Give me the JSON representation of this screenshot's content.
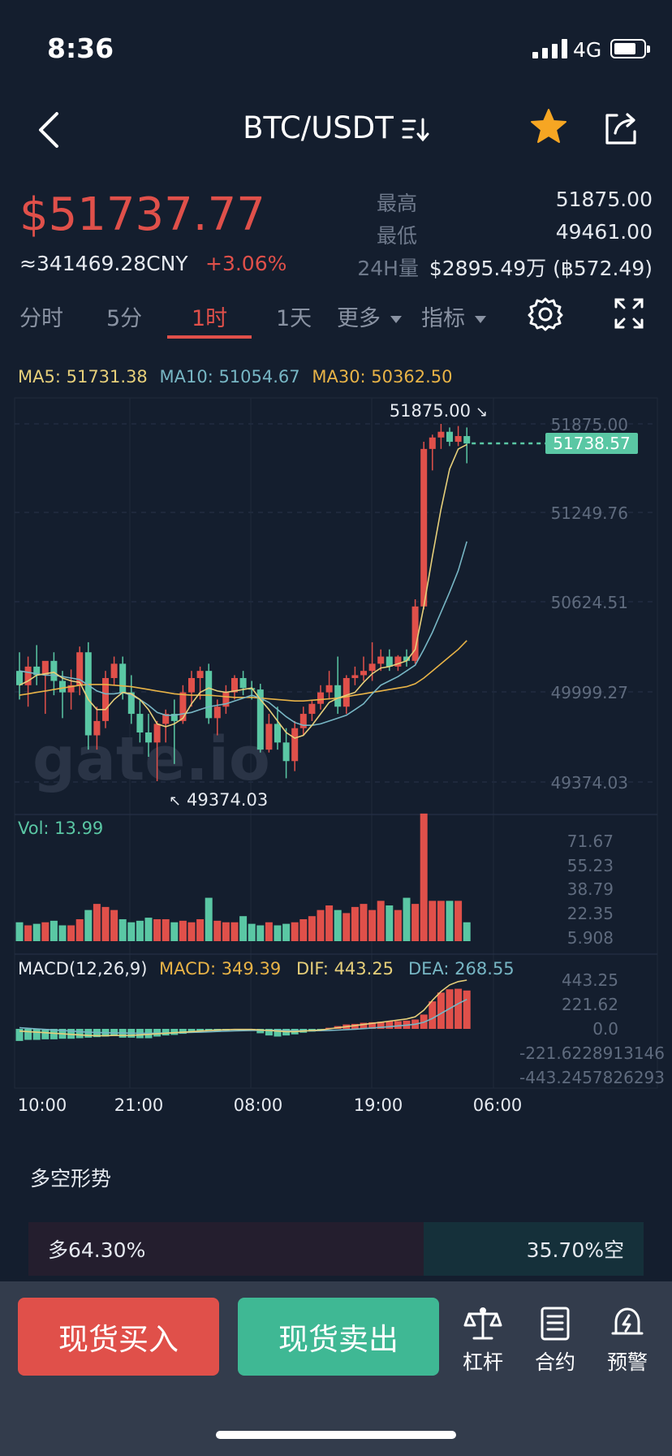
{
  "status_bar": {
    "time": "8:36",
    "network": "4G",
    "battery_level": 0.75
  },
  "header": {
    "pair": "BTC/USDT"
  },
  "ticker": {
    "last_price": "$51737.77",
    "cny_price": "≈341469.28CNY",
    "change_pct": "+3.06%",
    "high_label": "最高",
    "high_value": "51875.00",
    "low_label": "最低",
    "low_value": "49461.00",
    "volume_label": "24H量",
    "volume_value": "$2895.49万 (฿572.49)"
  },
  "interval_tabs": [
    {
      "label": "分时",
      "active": false
    },
    {
      "label": "5分",
      "active": false
    },
    {
      "label": "1时",
      "active": true
    },
    {
      "label": "1天",
      "active": false
    },
    {
      "label": "更多",
      "active": false
    },
    {
      "label": "指标",
      "active": false
    }
  ],
  "indicators": {
    "ma5": "MA5: 51731.38",
    "ma10": "MA10: 51054.67",
    "ma30": "MA30: 50362.50",
    "ma5_color": "#e6cf7a",
    "ma10_color": "#77b6c4",
    "ma30_color": "#e8b347"
  },
  "chart_data": {
    "type": "candlestick",
    "price_axis_ticks": [
      "51875.00",
      "51249.76",
      "50624.51",
      "49999.27",
      "49374.03"
    ],
    "price_range": [
      49374.03,
      51875.0
    ],
    "current_price_tag": "51738.57",
    "max_marker": "51875.00",
    "min_marker": "49374.03",
    "watermark": "gate.io",
    "time_ticks": [
      "10:00",
      "21:00",
      "08:00",
      "19:00",
      "06:00"
    ],
    "candles": [
      {
        "o": 50150,
        "h": 50280,
        "l": 49950,
        "c": 50050
      },
      {
        "o": 50050,
        "h": 50250,
        "l": 49900,
        "c": 50180
      },
      {
        "o": 50180,
        "h": 50330,
        "l": 50050,
        "c": 50120
      },
      {
        "o": 50120,
        "h": 50200,
        "l": 49850,
        "c": 50220
      },
      {
        "o": 50220,
        "h": 50280,
        "l": 49980,
        "c": 50080
      },
      {
        "o": 50080,
        "h": 50150,
        "l": 49820,
        "c": 50000
      },
      {
        "o": 50000,
        "h": 50160,
        "l": 49880,
        "c": 50050
      },
      {
        "o": 50050,
        "h": 50320,
        "l": 49980,
        "c": 50280
      },
      {
        "o": 50280,
        "h": 50350,
        "l": 49600,
        "c": 49700
      },
      {
        "o": 49700,
        "h": 49900,
        "l": 49600,
        "c": 49800
      },
      {
        "o": 49800,
        "h": 50150,
        "l": 49750,
        "c": 50100
      },
      {
        "o": 50100,
        "h": 50250,
        "l": 50050,
        "c": 50200
      },
      {
        "o": 50200,
        "h": 50250,
        "l": 49950,
        "c": 50000
      },
      {
        "o": 50000,
        "h": 50120,
        "l": 49780,
        "c": 49850
      },
      {
        "o": 49850,
        "h": 49950,
        "l": 49650,
        "c": 49720
      },
      {
        "o": 49720,
        "h": 49850,
        "l": 49550,
        "c": 49650
      },
      {
        "o": 49650,
        "h": 49800,
        "l": 49380,
        "c": 49780
      },
      {
        "o": 49780,
        "h": 49880,
        "l": 49650,
        "c": 49850
      },
      {
        "o": 49850,
        "h": 49950,
        "l": 49500,
        "c": 49800
      },
      {
        "o": 49800,
        "h": 50050,
        "l": 49780,
        "c": 50000
      },
      {
        "o": 50000,
        "h": 50150,
        "l": 49900,
        "c": 50100
      },
      {
        "o": 50100,
        "h": 50180,
        "l": 49950,
        "c": 50150
      },
      {
        "o": 50150,
        "h": 50200,
        "l": 49780,
        "c": 49820
      },
      {
        "o": 49820,
        "h": 49950,
        "l": 49700,
        "c": 49900
      },
      {
        "o": 49900,
        "h": 50050,
        "l": 49850,
        "c": 50000
      },
      {
        "o": 50000,
        "h": 50120,
        "l": 49950,
        "c": 50100
      },
      {
        "o": 50100,
        "h": 50150,
        "l": 49980,
        "c": 50030
      },
      {
        "o": 50030,
        "h": 50080,
        "l": 49950,
        "c": 50020
      },
      {
        "o": 50020,
        "h": 50060,
        "l": 49580,
        "c": 49600
      },
      {
        "o": 49600,
        "h": 49850,
        "l": 49580,
        "c": 49780
      },
      {
        "o": 49780,
        "h": 49900,
        "l": 49600,
        "c": 49650
      },
      {
        "o": 49650,
        "h": 49750,
        "l": 49400,
        "c": 49520
      },
      {
        "o": 49520,
        "h": 49800,
        "l": 49450,
        "c": 49750
      },
      {
        "o": 49750,
        "h": 49900,
        "l": 49700,
        "c": 49850
      },
      {
        "o": 49850,
        "h": 49950,
        "l": 49800,
        "c": 49920
      },
      {
        "o": 49920,
        "h": 50050,
        "l": 49880,
        "c": 50000
      },
      {
        "o": 50000,
        "h": 50150,
        "l": 49950,
        "c": 50050
      },
      {
        "o": 50050,
        "h": 50250,
        "l": 49850,
        "c": 49900
      },
      {
        "o": 49900,
        "h": 50120,
        "l": 49850,
        "c": 50100
      },
      {
        "o": 50100,
        "h": 50180,
        "l": 50050,
        "c": 50120
      },
      {
        "o": 50120,
        "h": 50250,
        "l": 50080,
        "c": 50150
      },
      {
        "o": 50150,
        "h": 50350,
        "l": 50080,
        "c": 50200
      },
      {
        "o": 50200,
        "h": 50300,
        "l": 50150,
        "c": 50250
      },
      {
        "o": 50250,
        "h": 50300,
        "l": 50150,
        "c": 50180
      },
      {
        "o": 50180,
        "h": 50260,
        "l": 50150,
        "c": 50250
      },
      {
        "o": 50250,
        "h": 50300,
        "l": 50180,
        "c": 50220
      },
      {
        "o": 50220,
        "h": 50650,
        "l": 50200,
        "c": 50600
      },
      {
        "o": 50600,
        "h": 51750,
        "l": 50580,
        "c": 51700
      },
      {
        "o": 51700,
        "h": 51800,
        "l": 51550,
        "c": 51780
      },
      {
        "o": 51780,
        "h": 51875,
        "l": 51700,
        "c": 51820
      },
      {
        "o": 51820,
        "h": 51850,
        "l": 51720,
        "c": 51750
      },
      {
        "o": 51750,
        "h": 51860,
        "l": 51720,
        "c": 51790
      },
      {
        "o": 51790,
        "h": 51850,
        "l": 51600,
        "c": 51738
      }
    ],
    "ma5_series": [
      50050,
      50080,
      50120,
      50130,
      50140,
      50100,
      50080,
      50070,
      49950,
      49880,
      49880,
      49950,
      50000,
      49990,
      49950,
      49880,
      49780,
      49760,
      49780,
      49820,
      49920,
      50000,
      50030,
      50010,
      50000,
      50010,
      50020,
      50030,
      49950,
      49880,
      49800,
      49720,
      49680,
      49700,
      49770,
      49850,
      49930,
      49960,
      49980,
      50000,
      50070,
      50130,
      50170,
      50180,
      50200,
      50220,
      50300,
      50600,
      50950,
      51280,
      51560,
      51700,
      51731
    ],
    "ma10_series": [
      50150,
      50140,
      50130,
      50120,
      50120,
      50110,
      50100,
      50090,
      50050,
      50010,
      49990,
      49990,
      50000,
      49980,
      49950,
      49910,
      49860,
      49840,
      49840,
      49850,
      49860,
      49880,
      49900,
      49910,
      49920,
      49940,
      49960,
      49980,
      49960,
      49930,
      49880,
      49830,
      49790,
      49770,
      49770,
      49780,
      49800,
      49820,
      49840,
      49880,
      49920,
      49990,
      50050,
      50080,
      50110,
      50150,
      50190,
      50300,
      50420,
      50560,
      50700,
      50850,
      51054
    ],
    "ma30_series": [
      49980,
      49990,
      50000,
      50010,
      50020,
      50030,
      50040,
      50050,
      50055,
      50055,
      50055,
      50050,
      50045,
      50040,
      50030,
      50020,
      50010,
      50000,
      49990,
      49985,
      49980,
      49980,
      49980,
      49975,
      49970,
      49965,
      49965,
      49965,
      49960,
      49955,
      49950,
      49945,
      49940,
      49940,
      49945,
      49950,
      49955,
      49960,
      49970,
      49980,
      49990,
      50000,
      50010,
      50020,
      50030,
      50040,
      50060,
      50100,
      50150,
      50200,
      50250,
      50300,
      50362
    ]
  },
  "volume": {
    "label": "Vol: 13.99",
    "ticks": [
      "71.67",
      "55.23",
      "38.79",
      "22.35",
      "5.908"
    ],
    "range": [
      5.908,
      71.67
    ],
    "values": [
      14,
      12,
      13,
      14,
      15,
      12,
      12,
      16,
      22,
      26,
      24,
      22,
      16,
      14,
      15,
      17,
      16,
      16,
      14,
      15,
      14,
      16,
      30,
      15,
      14,
      14,
      18,
      13,
      12,
      14,
      12,
      13,
      14,
      16,
      18,
      22,
      25,
      22,
      20,
      24,
      26,
      22,
      28,
      25,
      22,
      30,
      26,
      85,
      28,
      28,
      28,
      28,
      14
    ]
  },
  "macd": {
    "label": "MACD(12,26,9)",
    "macd_value": "MACD: 349.39",
    "dif_value": "DIF: 443.25",
    "dea_value": "DEA: 268.55",
    "ticks": [
      "443.25",
      "221.62",
      "0.0",
      "-221.6228913146",
      "-443.2457826293"
    ],
    "range": [
      -443.25,
      443.25
    ],
    "hist": [
      -110,
      -100,
      -100,
      -95,
      -95,
      -90,
      -90,
      -85,
      -80,
      -75,
      -70,
      -65,
      -80,
      -80,
      -85,
      -85,
      -70,
      -60,
      -55,
      -45,
      -35,
      -25,
      -20,
      -20,
      -15,
      -10,
      -10,
      -15,
      -40,
      -60,
      -70,
      -60,
      -50,
      -35,
      -25,
      -10,
      10,
      25,
      40,
      45,
      55,
      60,
      65,
      70,
      70,
      75,
      85,
      130,
      250,
      330,
      360,
      365,
      349
    ],
    "dif": [
      -20,
      -25,
      -30,
      -35,
      -40,
      -45,
      -50,
      -55,
      -60,
      -62,
      -62,
      -60,
      -60,
      -58,
      -55,
      -50,
      -45,
      -40,
      -35,
      -30,
      -25,
      -20,
      -15,
      -10,
      -8,
      -5,
      -5,
      -5,
      -10,
      -15,
      -20,
      -25,
      -25,
      -20,
      -15,
      -10,
      0,
      10,
      20,
      30,
      40,
      50,
      60,
      70,
      80,
      90,
      110,
      170,
      260,
      340,
      400,
      430,
      443
    ],
    "dea": [
      10,
      5,
      0,
      -5,
      -10,
      -15,
      -20,
      -25,
      -30,
      -33,
      -35,
      -37,
      -38,
      -39,
      -40,
      -40,
      -39,
      -38,
      -36,
      -34,
      -32,
      -30,
      -27,
      -24,
      -21,
      -18,
      -16,
      -14,
      -13,
      -13,
      -14,
      -16,
      -17,
      -17,
      -17,
      -16,
      -14,
      -11,
      -7,
      -3,
      2,
      8,
      14,
      20,
      27,
      34,
      42,
      60,
      95,
      140,
      185,
      230,
      268
    ]
  },
  "sentiment": {
    "title": "多空形势",
    "long_label": "多64.30%",
    "short_label": "35.70%空",
    "long_fraction": 0.643
  },
  "bottom_bar": {
    "buy_label": "现货买入",
    "sell_label": "现货卖出",
    "tools": [
      {
        "icon": "scale-icon",
        "label": "杠杆"
      },
      {
        "icon": "contract-icon",
        "label": "合约"
      },
      {
        "icon": "alert-icon",
        "label": "预警"
      }
    ]
  },
  "colors": {
    "up": "#e0504a",
    "down": "#5ac7a4",
    "background": "#141e2e"
  }
}
